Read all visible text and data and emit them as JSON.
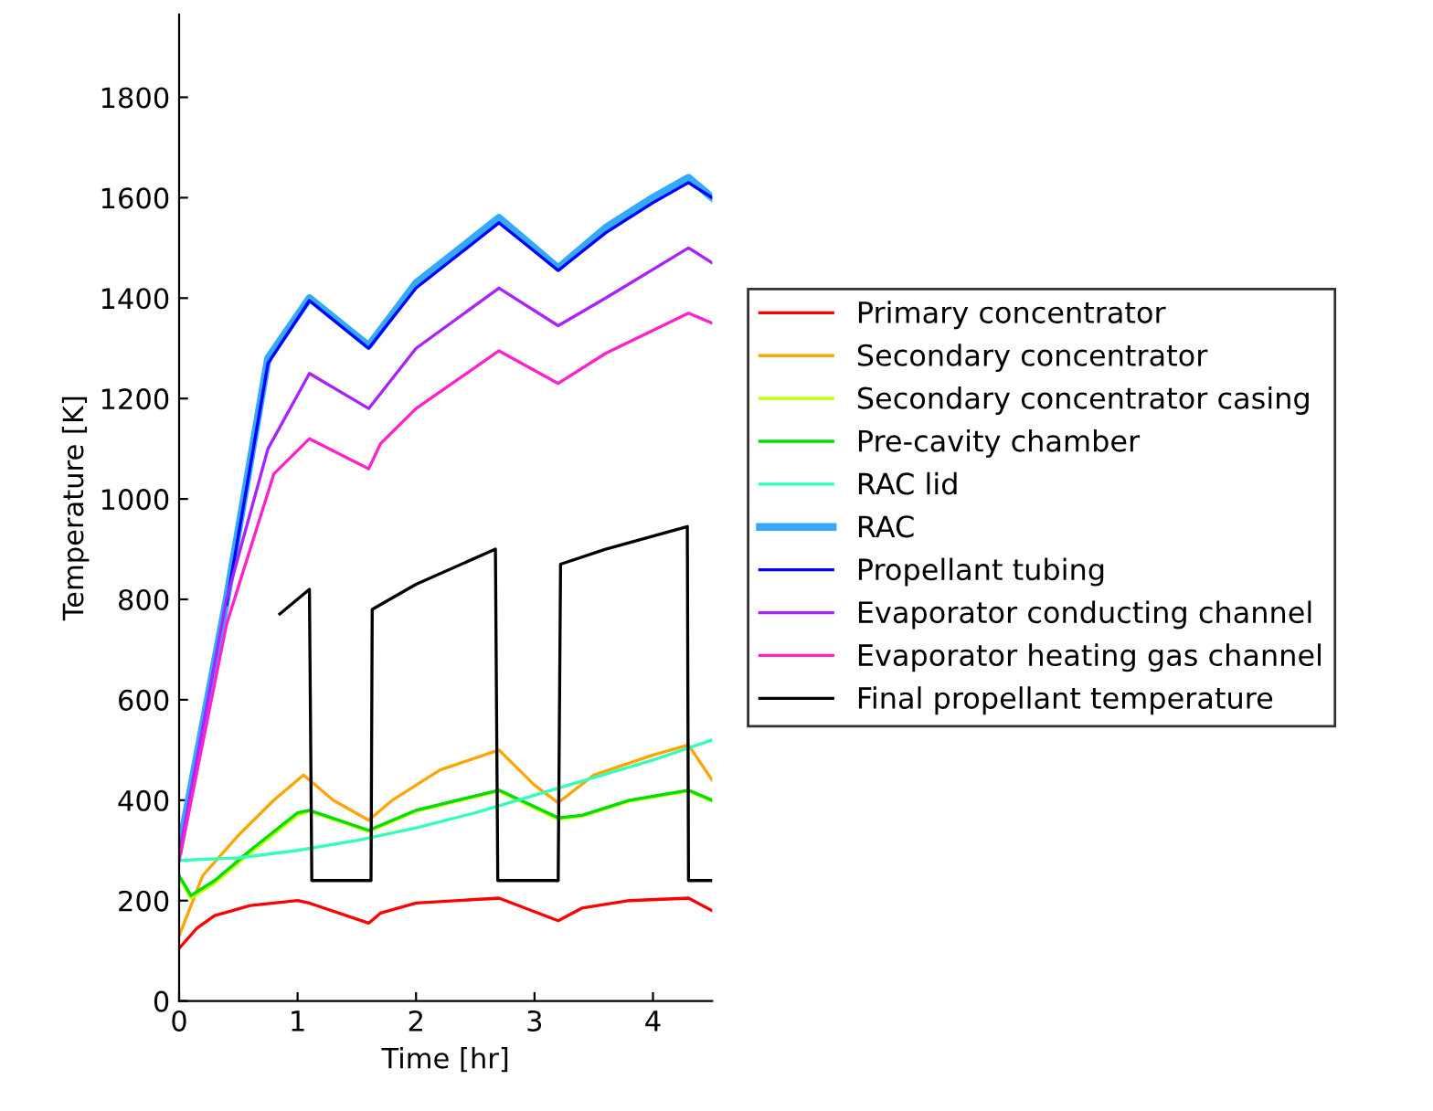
{
  "chart_data": {
    "type": "line",
    "xlabel": "Time [hr]",
    "ylabel": "Temperature [K]",
    "xlim": [
      0,
      4.5
    ],
    "ylim": [
      0,
      1965
    ],
    "xticks": [
      0,
      1,
      2,
      3,
      4
    ],
    "yticks": [
      0,
      200,
      400,
      600,
      800,
      1000,
      1200,
      1400,
      1600,
      1800
    ],
    "grid": false,
    "legend": "right",
    "marker": "none",
    "line_style": "solid",
    "series": [
      {
        "name": "Primary concentrator",
        "color": "#ff0000",
        "x": [
          0,
          0.15,
          0.3,
          0.6,
          1.0,
          1.1,
          1.6,
          1.7,
          2.0,
          2.7,
          3.2,
          3.4,
          3.8,
          4.3,
          4.5
        ],
        "values": [
          105,
          145,
          170,
          190,
          200,
          195,
          155,
          175,
          195,
          205,
          160,
          185,
          200,
          205,
          180
        ]
      },
      {
        "name": "Secondary concentrator",
        "color": "#ffa500",
        "x": [
          0,
          0.2,
          0.5,
          0.8,
          1.05,
          1.3,
          1.6,
          1.8,
          2.2,
          2.7,
          3.0,
          3.2,
          3.5,
          4.0,
          4.3,
          4.5
        ],
        "values": [
          130,
          250,
          330,
          400,
          450,
          400,
          360,
          400,
          460,
          500,
          430,
          395,
          450,
          490,
          510,
          440
        ]
      },
      {
        "name": "Secondary concentrator casing",
        "color": "#bfff00",
        "x": [
          0,
          0.1,
          0.3,
          0.6,
          1.0,
          1.1,
          1.6,
          2.0,
          2.7,
          3.2,
          3.4,
          3.8,
          4.3,
          4.5
        ],
        "values": [
          245,
          205,
          235,
          295,
          370,
          378,
          338,
          378,
          418,
          362,
          368,
          398,
          418,
          398
        ]
      },
      {
        "name": "Pre-cavity chamber",
        "color": "#00dd00",
        "x": [
          0,
          0.1,
          0.3,
          0.6,
          1.0,
          1.1,
          1.6,
          2.0,
          2.7,
          3.2,
          3.4,
          3.8,
          4.3,
          4.5
        ],
        "values": [
          250,
          210,
          240,
          300,
          375,
          380,
          340,
          380,
          420,
          365,
          370,
          400,
          420,
          400
        ]
      },
      {
        "name": "RAC lid",
        "color": "#33ffbb",
        "x": [
          0,
          0.5,
          1.0,
          1.5,
          2.0,
          2.5,
          3.0,
          3.5,
          4.0,
          4.5
        ],
        "values": [
          280,
          285,
          300,
          320,
          345,
          375,
          410,
          445,
          480,
          520
        ]
      },
      {
        "name": "RAC",
        "color": "#33aaff",
        "x": [
          0,
          0.4,
          0.75,
          1.1,
          1.6,
          2.0,
          2.7,
          3.2,
          3.6,
          4.0,
          4.3,
          4.5
        ],
        "values": [
          300,
          800,
          1280,
          1400,
          1305,
          1430,
          1560,
          1460,
          1540,
          1600,
          1640,
          1600
        ]
      },
      {
        "name": "Propellant tubing",
        "color": "#0000ff",
        "x": [
          0.4,
          0.75,
          1.1,
          1.6,
          2.0,
          2.7,
          3.2,
          3.6,
          4.0,
          4.3,
          4.5
        ],
        "values": [
          790,
          1270,
          1395,
          1300,
          1420,
          1550,
          1455,
          1530,
          1590,
          1630,
          1600
        ]
      },
      {
        "name": "Evaporator conducting channel",
        "color": "#aa22ff",
        "x": [
          0,
          0.4,
          0.75,
          1.1,
          1.6,
          1.7,
          2.0,
          2.7,
          3.2,
          3.6,
          4.3,
          4.5
        ],
        "values": [
          290,
          800,
          1100,
          1250,
          1180,
          1210,
          1300,
          1420,
          1345,
          1400,
          1500,
          1470
        ]
      },
      {
        "name": "Evaporator heating gas channel",
        "color": "#ff22cc",
        "x": [
          0,
          0.4,
          0.8,
          1.1,
          1.6,
          1.7,
          2.0,
          2.7,
          3.2,
          3.6,
          4.3,
          4.5
        ],
        "values": [
          280,
          750,
          1050,
          1120,
          1060,
          1110,
          1180,
          1295,
          1230,
          1290,
          1370,
          1350
        ]
      },
      {
        "name": "Final propellant temperature",
        "color": "#000000",
        "x": [
          0.85,
          1.1,
          1.12,
          1.62,
          1.63,
          2.0,
          2.67,
          2.69,
          3.2,
          3.22,
          3.6,
          4.29,
          4.3,
          4.5
        ],
        "values": [
          771,
          820,
          240,
          240,
          780,
          830,
          900,
          240,
          240,
          870,
          900,
          945,
          240,
          240
        ]
      }
    ]
  }
}
